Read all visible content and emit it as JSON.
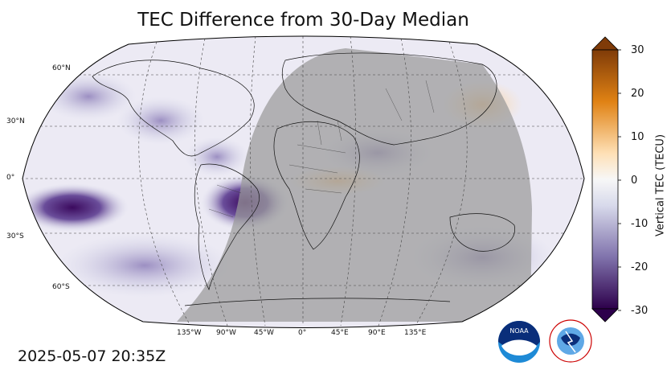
{
  "title": "TEC Difference from 30-Day Median",
  "timestamp": "2025-05-07 20:35Z",
  "map": {
    "projection": "robinson",
    "latitude_labels": [
      "60°N",
      "30°N",
      "0°",
      "30°S",
      "60°S"
    ],
    "longitude_labels": [
      "135°W",
      "90°W",
      "45°W",
      "0°",
      "45°E",
      "90°E",
      "135°E"
    ],
    "night_shading": "gray"
  },
  "colorbar": {
    "label": "Vertical TEC (TECU)",
    "ticks": [
      "30",
      "20",
      "10",
      "0",
      "-10",
      "-20",
      "-30"
    ],
    "min": -30,
    "max": 30,
    "colors": {
      "high": "#7f3b08",
      "mid_high": "#e08214",
      "light_high": "#fee0b6",
      "zero": "#f7f7f7",
      "light_low": "#d8daeb",
      "mid_low": "#8073ac",
      "low": "#2d004b"
    }
  },
  "logos": {
    "noaa": "NOAA",
    "nws": "NATIONAL WEATHER SERVICE"
  }
}
